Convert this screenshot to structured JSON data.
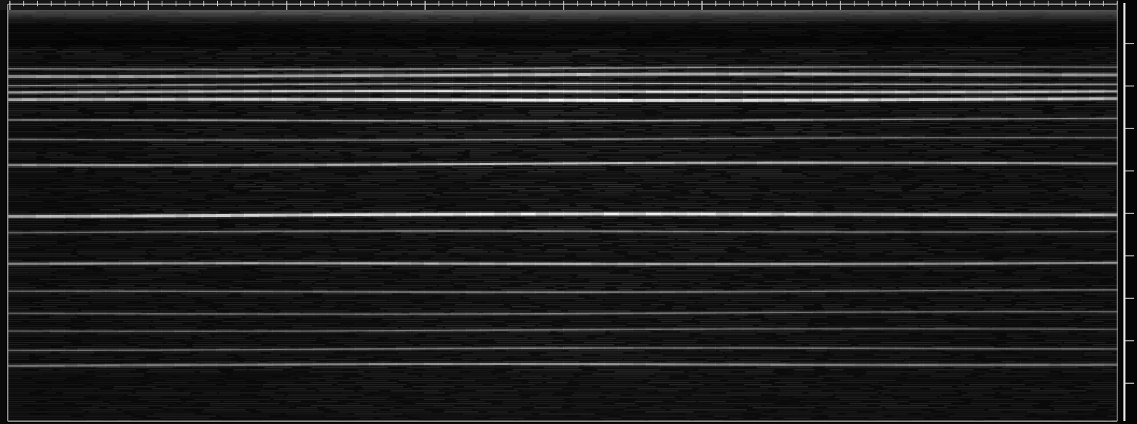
{
  "view": {
    "background": "#000000",
    "frame_color": "#8a8a8a",
    "ruler_color": "#d8d8d8",
    "ruler_background": "#1c1c1c"
  },
  "spectrogram": {
    "columns": 160,
    "bands": [
      {
        "level": 0.55,
        "width": 2,
        "taper": 0.2
      },
      {
        "level": 0.7,
        "width": 4,
        "taper": 0.05
      },
      {
        "level": 0.62,
        "width": 2,
        "taper": 0.0
      },
      {
        "level": 0.85,
        "width": 3,
        "taper": -0.1
      },
      {
        "level": 0.92,
        "width": 4,
        "taper": -0.05
      },
      {
        "level": 0.6,
        "width": 2,
        "taper": 0.15
      },
      {
        "level": 0.48,
        "width": 2,
        "taper": 0.2
      },
      {
        "level": 0.75,
        "width": 3,
        "taper": 0.1
      },
      {
        "level": 0.98,
        "width": 4,
        "taper": 0.05
      },
      {
        "level": 0.45,
        "width": 2,
        "taper": 0.1
      },
      {
        "level": 0.72,
        "width": 3,
        "taper": 0.15
      },
      {
        "level": 0.45,
        "width": 2,
        "taper": 0.2
      },
      {
        "level": 0.4,
        "width": 2,
        "taper": 0.2
      },
      {
        "level": 0.38,
        "width": 2,
        "taper": 0.25
      },
      {
        "level": 0.42,
        "width": 2,
        "taper": 0.15
      },
      {
        "level": 0.5,
        "width": 3,
        "taper": 0.1
      }
    ]
  }
}
